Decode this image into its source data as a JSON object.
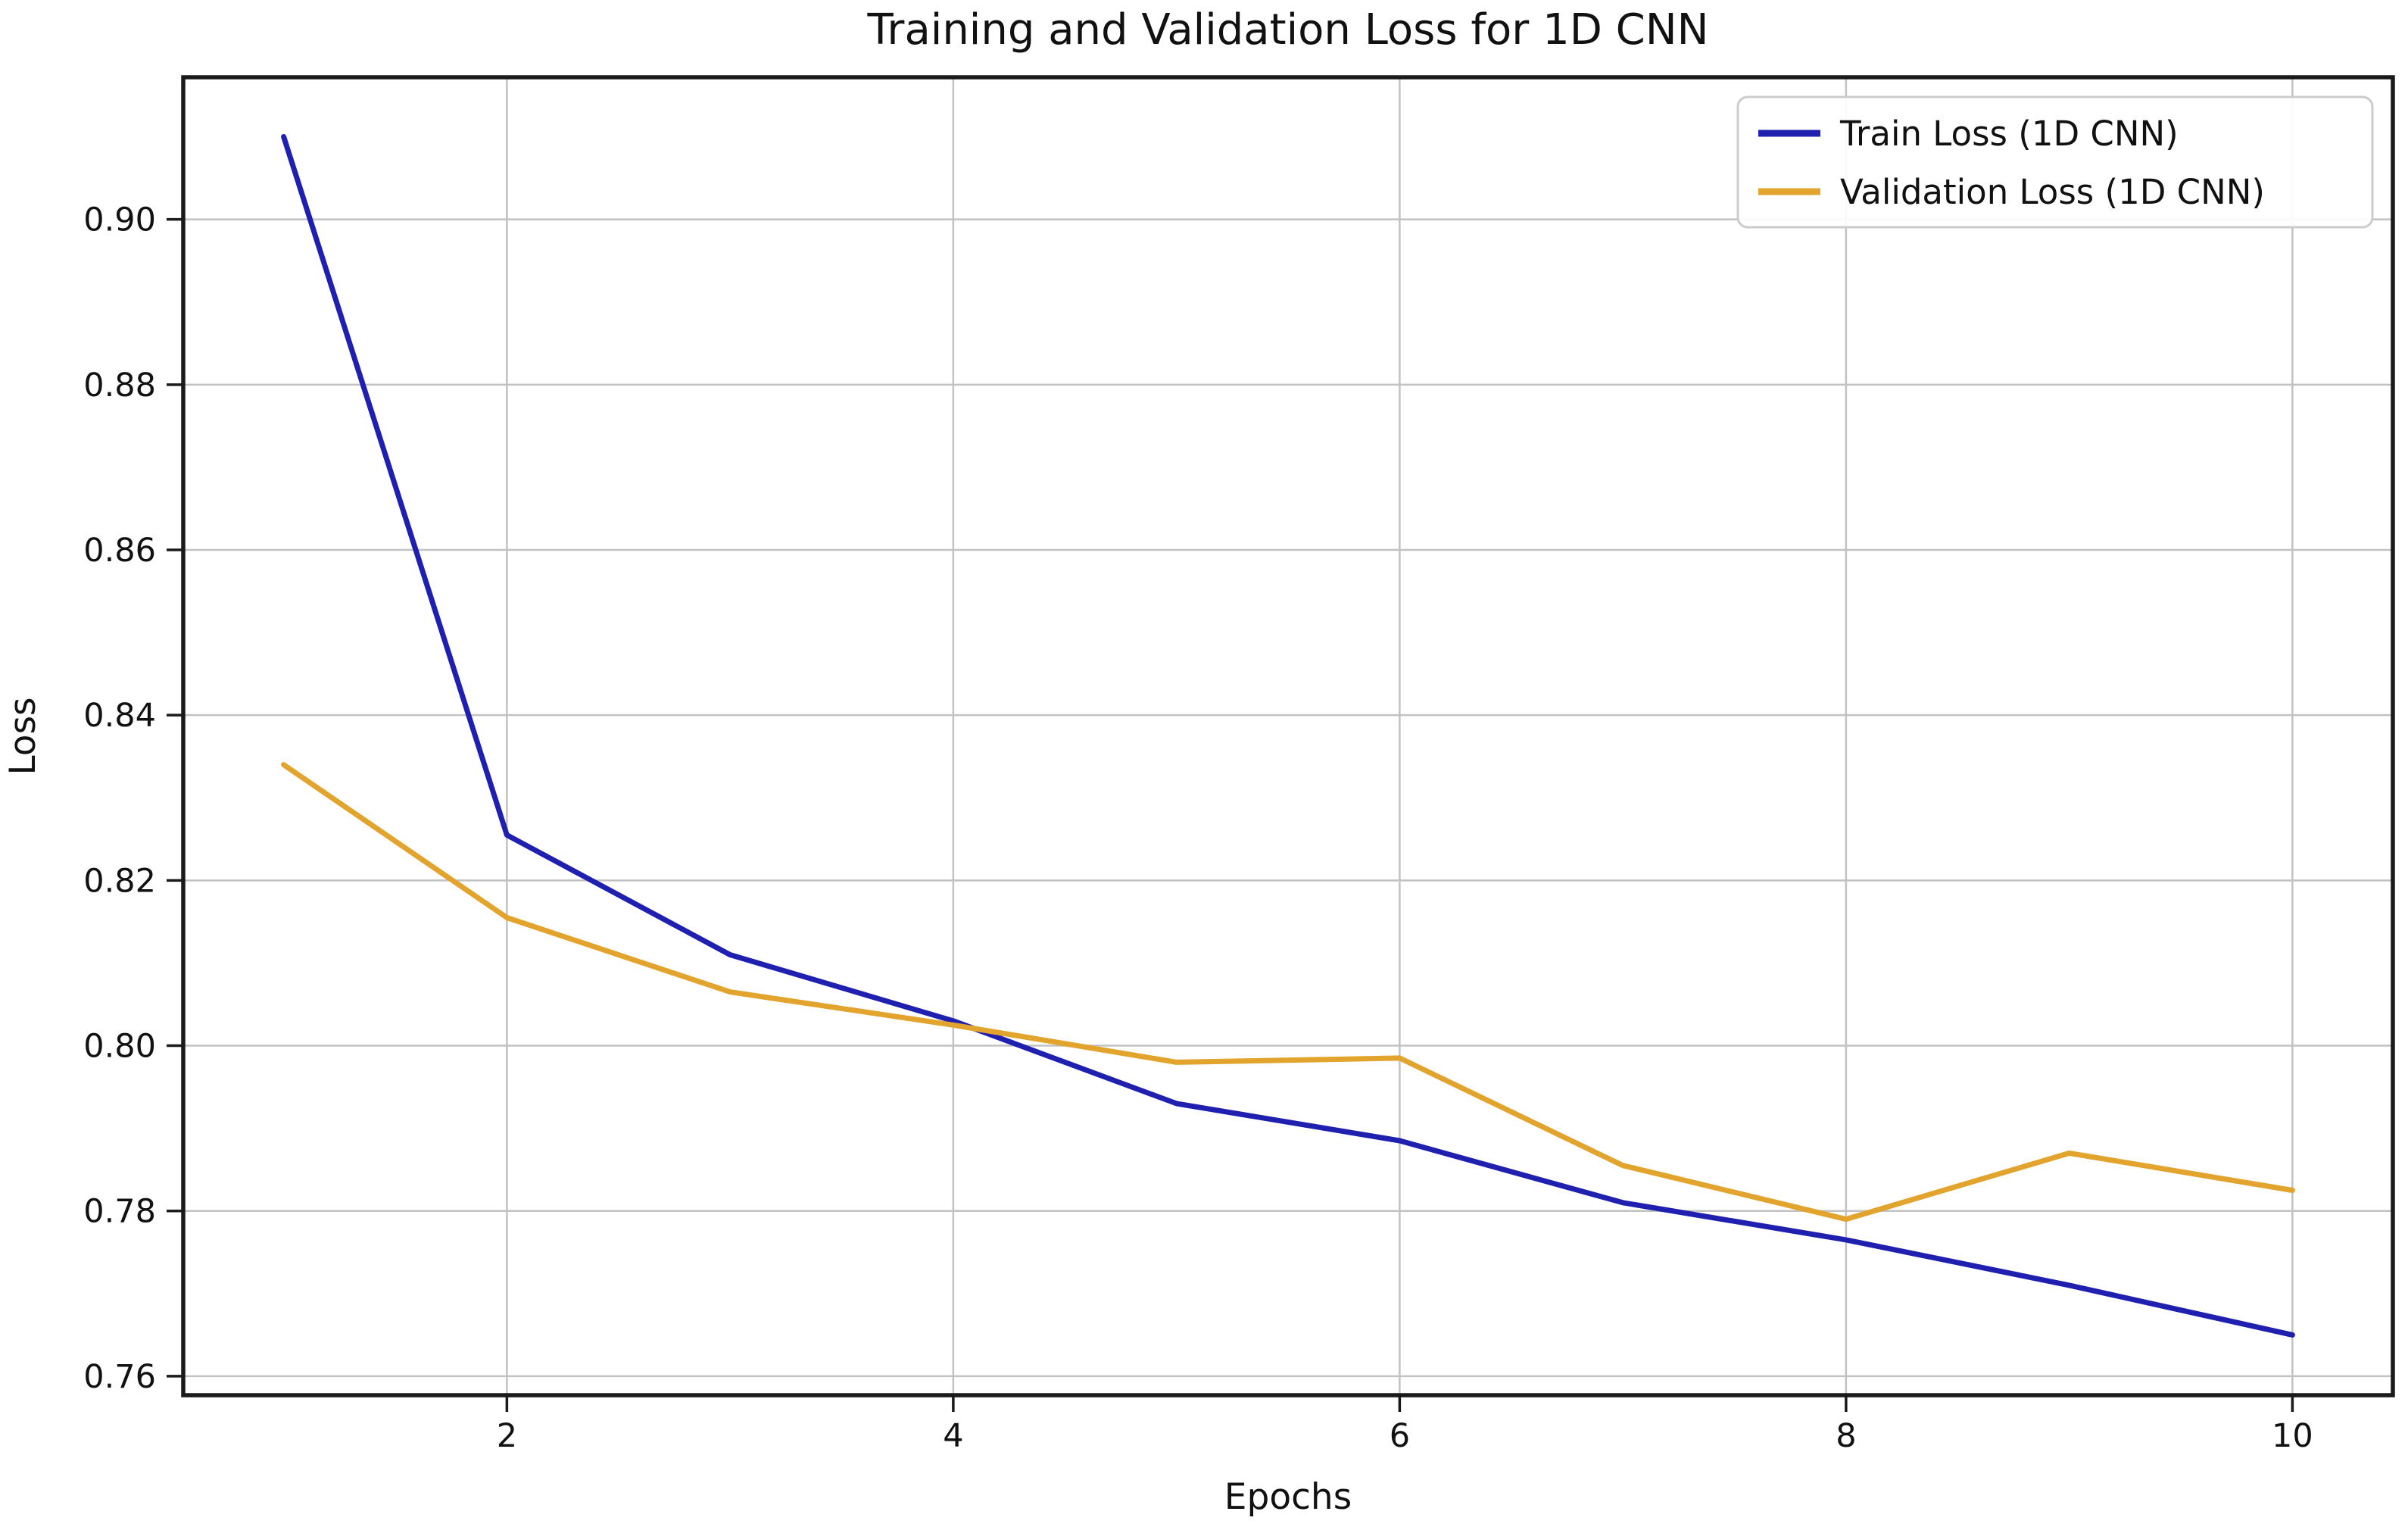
{
  "chart_data": {
    "type": "line",
    "title": "Training and Validation Loss for 1D CNN",
    "xlabel": "Epochs",
    "ylabel": "Loss",
    "x": [
      1,
      2,
      3,
      4,
      5,
      6,
      7,
      8,
      9,
      10
    ],
    "series": [
      {
        "name": "Train Loss (1D CNN)",
        "color": "#2020b0",
        "values": [
          0.91,
          0.8255,
          0.811,
          0.803,
          0.793,
          0.7885,
          0.781,
          0.7765,
          0.771,
          0.765
        ]
      },
      {
        "name": "Validation Loss (1D CNN)",
        "color": "#e2a42c",
        "values": [
          0.834,
          0.8155,
          0.8065,
          0.8025,
          0.798,
          0.7985,
          0.7855,
          0.779,
          0.787,
          0.7825
        ]
      }
    ],
    "xticks": [
      2,
      4,
      6,
      8,
      10
    ],
    "xtick_labels": [
      "2",
      "4",
      "6",
      "8",
      "10"
    ],
    "yticks": [
      0.76,
      0.78,
      0.8,
      0.82,
      0.84,
      0.86,
      0.88,
      0.9
    ],
    "ytick_labels": [
      "0.76",
      "0.78",
      "0.80",
      "0.82",
      "0.84",
      "0.86",
      "0.88",
      "0.90"
    ],
    "xlim": [
      0.55,
      10.45
    ],
    "ylim": [
      0.7577,
      0.9172
    ],
    "grid": true,
    "legend_position": "upper right",
    "grid_color": "#c2c2c2",
    "spine_color": "#1a1a1a",
    "background_color": "#ffffff",
    "legend_border_color": "#cccccc"
  }
}
